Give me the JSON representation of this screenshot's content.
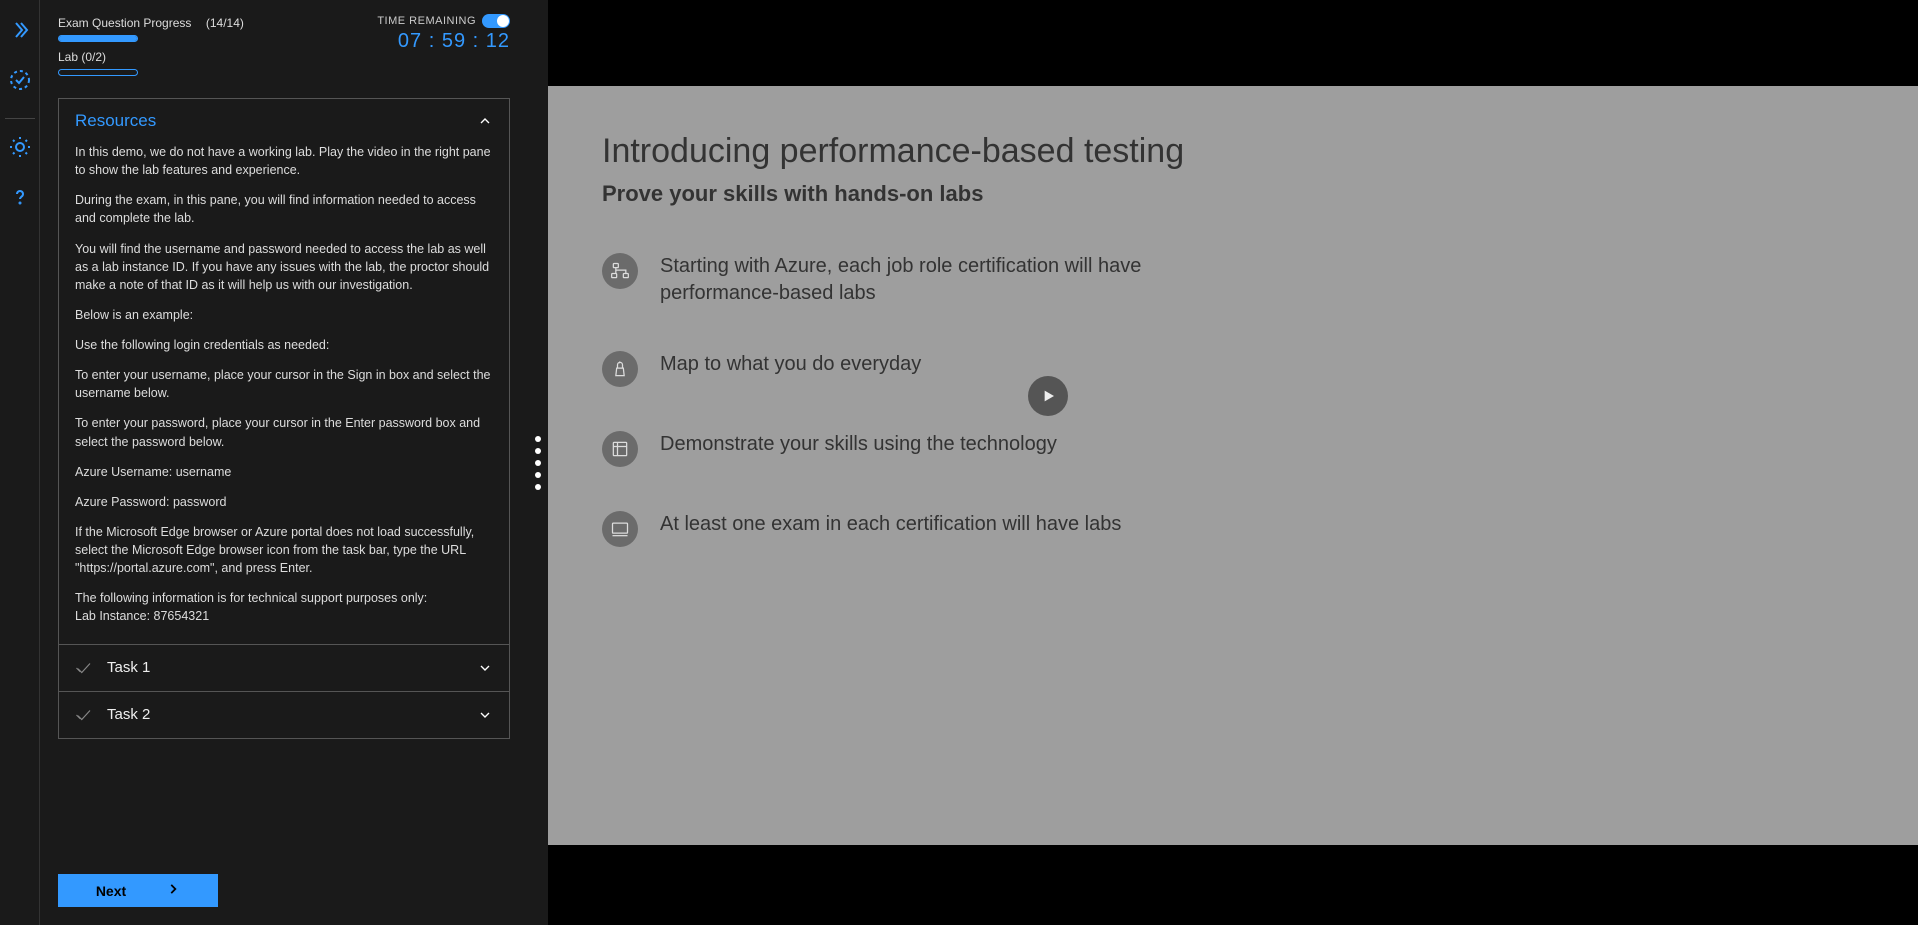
{
  "colors": {
    "accent": "#3399ff",
    "panel_bg": "#1a1a1a",
    "slide_bg": "#9e9e9e",
    "slide_text": "#333333"
  },
  "rail": {
    "icons": [
      "expand",
      "check-circle",
      "sun",
      "help"
    ]
  },
  "progress": {
    "question_label": "Exam Question Progress",
    "question_count": "(14/14)",
    "question_fill_pct": 100,
    "lab_label": "Lab (0/2)",
    "lab_fill_pct": 0
  },
  "time": {
    "label": "TIME REMAINING",
    "value": "07 : 59 : 12",
    "toggle_on": true
  },
  "resources": {
    "title": "Resources",
    "expanded": true,
    "paragraphs": [
      "In this demo, we do not have a working lab. Play the video in the right pane to show the lab features and experience.",
      "During the exam, in this pane, you will find information needed to access and complete the lab.",
      "You will find the username and password needed to access the lab as well as a lab instance ID. If you have any issues with the lab, the proctor should make a note of that ID as it will help us with our investigation.",
      "Below is an example:",
      "Use the following login credentials as needed:",
      "To enter your username, place your cursor in the Sign in box and select the username below.",
      "To enter your password, place your cursor in the Enter password box and select the password below.",
      "Azure Username: username",
      "Azure Password: password",
      "If the Microsoft Edge browser or Azure portal does not load successfully, select the Microsoft Edge browser icon from the task bar, type the URL \"https://portal.azure.com\", and press Enter.",
      "The following information is for technical support purposes only:\nLab Instance: 87654321"
    ]
  },
  "tasks": [
    {
      "label": "Task 1"
    },
    {
      "label": "Task 2"
    }
  ],
  "next_label": "Next",
  "slide": {
    "title": "Introducing performance-based testing",
    "subtitle": "Prove your skills with hands-on labs",
    "bullets": [
      "Starting with Azure, each job role certification will have performance-based labs",
      "Map to what you do everyday",
      "Demonstrate your skills using the technology",
      "At least one exam in each certification will have labs"
    ]
  }
}
